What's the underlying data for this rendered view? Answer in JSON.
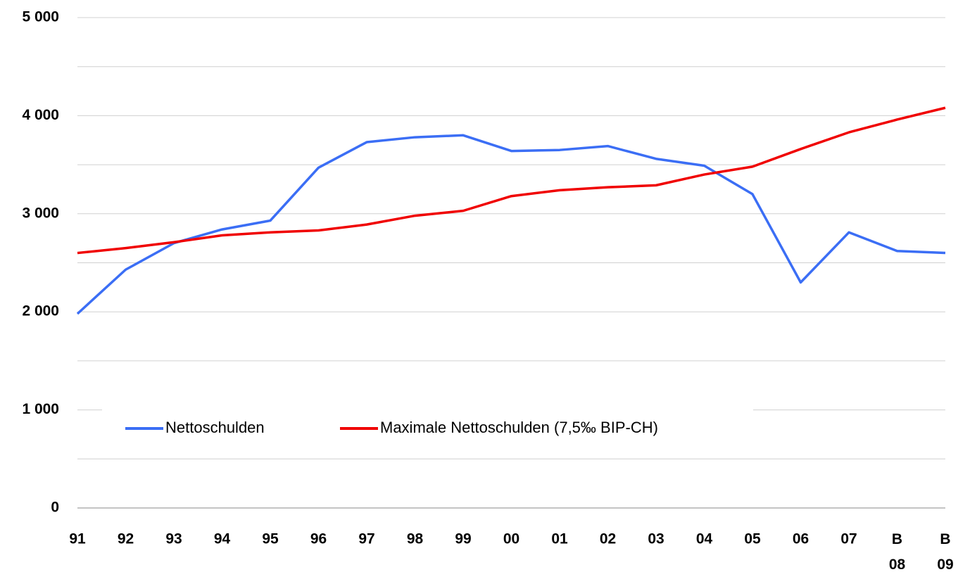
{
  "chart_data": {
    "type": "line",
    "categories": [
      "91",
      "92",
      "93",
      "94",
      "95",
      "96",
      "97",
      "98",
      "99",
      "00",
      "01",
      "02",
      "03",
      "04",
      "05",
      "06",
      "07",
      "B 08",
      "B 09"
    ],
    "series": [
      {
        "name": "Nettoschulden",
        "color": "#3b6ef5",
        "values": [
          1980,
          2430,
          2700,
          2840,
          2930,
          3470,
          3730,
          3780,
          3800,
          3640,
          3650,
          3690,
          3560,
          3490,
          3200,
          2300,
          2810,
          2620,
          2600
        ]
      },
      {
        "name": "Maximale Nettoschulden (7,5‰ BIP-CH)",
        "color": "#f00000",
        "values": [
          2600,
          2650,
          2710,
          2780,
          2810,
          2830,
          2890,
          2980,
          3030,
          3180,
          3240,
          3270,
          3290,
          3400,
          3480,
          3660,
          3830,
          3960,
          4080
        ]
      }
    ],
    "ylim": [
      0,
      5000
    ],
    "yticks": [
      0,
      {
        "value": 1000,
        "label": "1 000"
      },
      {
        "value": 2000,
        "label": "2 000"
      },
      {
        "value": 3000,
        "label": "3 000"
      },
      {
        "value": 4000,
        "label": "4 000"
      },
      {
        "value": 5000,
        "label": "5 000"
      }
    ],
    "minor_yticks": [
      500,
      1500,
      2500,
      3500,
      4500
    ],
    "grid": true,
    "legend": "bottom"
  }
}
